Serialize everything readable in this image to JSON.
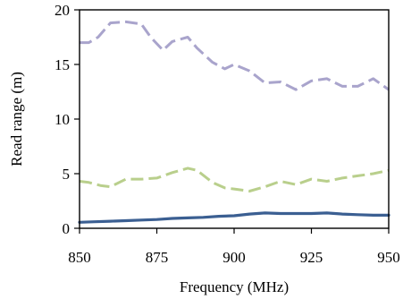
{
  "chart_data": {
    "type": "line",
    "title": "",
    "xlabel": "Frequency (MHz)",
    "ylabel": "Read range (m)",
    "xlim": [
      850,
      950
    ],
    "ylim": [
      0,
      20
    ],
    "xticks": [
      850,
      875,
      900,
      925,
      950
    ],
    "yticks": [
      0,
      5,
      10,
      15,
      20
    ],
    "grid": false,
    "legend": "none",
    "series": [
      {
        "color": "#a9a4cc",
        "style": "dashed",
        "x": [
          850,
          853,
          856,
          860,
          865,
          870,
          873,
          877,
          880,
          885,
          888,
          893,
          897,
          900,
          905,
          910,
          915,
          920,
          925,
          930,
          935,
          940,
          945,
          950
        ],
        "y": [
          17.0,
          17.0,
          17.5,
          18.8,
          18.9,
          18.7,
          17.5,
          16.3,
          17.1,
          17.5,
          16.5,
          15.2,
          14.6,
          15.0,
          14.4,
          13.3,
          13.4,
          12.7,
          13.5,
          13.7,
          13.0,
          13.0,
          13.7,
          12.7
        ]
      },
      {
        "color": "#b9cf8c",
        "style": "dashed",
        "x": [
          850,
          853,
          857,
          860,
          865,
          870,
          875,
          880,
          885,
          888,
          893,
          897,
          900,
          905,
          910,
          915,
          920,
          925,
          930,
          935,
          940,
          945,
          950
        ],
        "y": [
          4.3,
          4.2,
          3.9,
          3.8,
          4.5,
          4.5,
          4.6,
          5.1,
          5.5,
          5.3,
          4.2,
          3.7,
          3.6,
          3.4,
          3.8,
          4.3,
          4.0,
          4.5,
          4.3,
          4.6,
          4.8,
          5.0,
          5.3
        ]
      },
      {
        "color": "#3b5f92",
        "style": "solid",
        "x": [
          850,
          855,
          860,
          865,
          870,
          875,
          880,
          885,
          890,
          895,
          900,
          905,
          910,
          915,
          920,
          925,
          930,
          935,
          940,
          945,
          950
        ],
        "y": [
          0.55,
          0.6,
          0.65,
          0.7,
          0.75,
          0.8,
          0.9,
          0.95,
          1.0,
          1.1,
          1.15,
          1.3,
          1.4,
          1.35,
          1.35,
          1.35,
          1.4,
          1.3,
          1.25,
          1.2,
          1.2
        ]
      }
    ]
  }
}
